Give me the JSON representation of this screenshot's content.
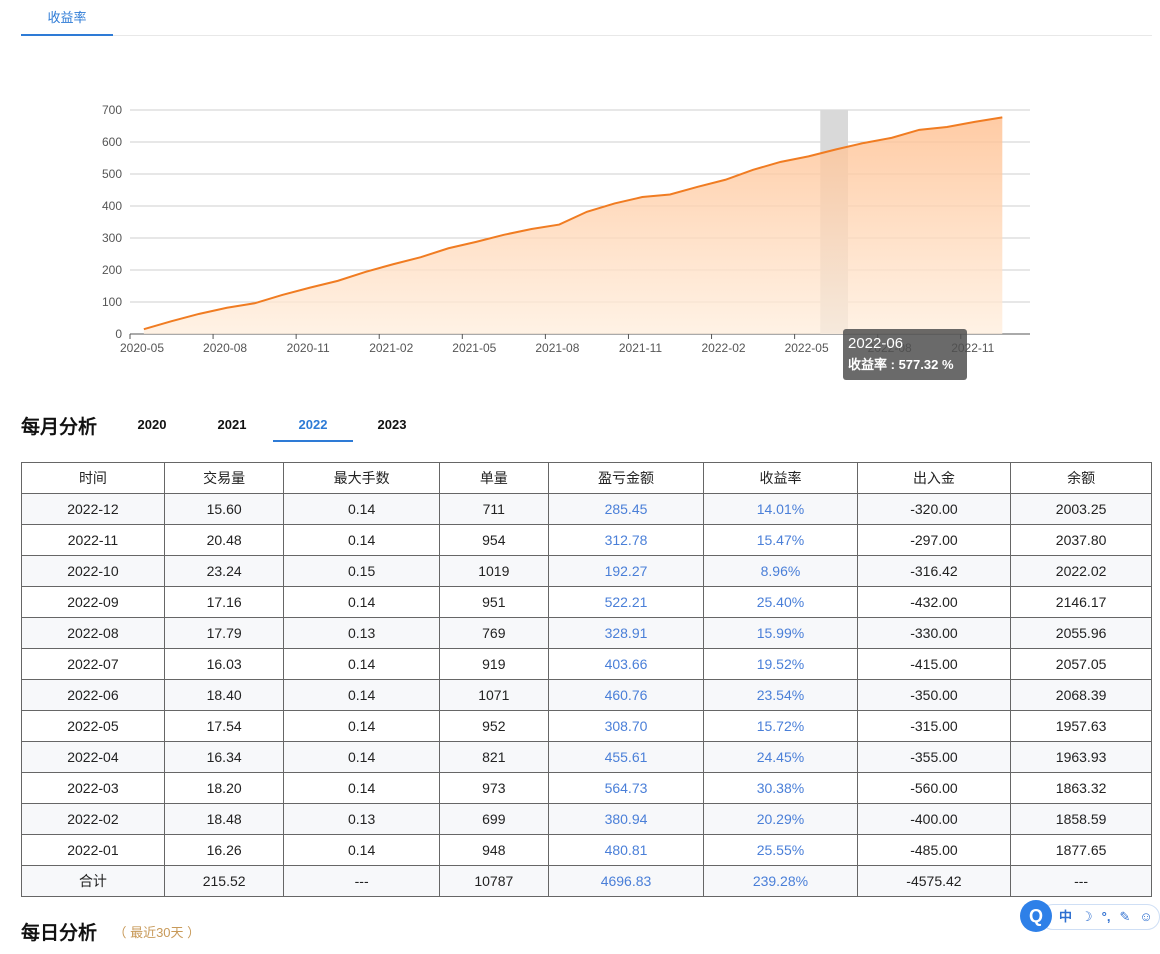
{
  "top_tab": {
    "label": "收益率"
  },
  "chart_data": {
    "type": "area",
    "x": [
      "2020-05",
      "2020-06",
      "2020-07",
      "2020-08",
      "2020-09",
      "2020-10",
      "2020-11",
      "2020-12",
      "2021-01",
      "2021-02",
      "2021-03",
      "2021-04",
      "2021-05",
      "2021-06",
      "2021-07",
      "2021-08",
      "2021-09",
      "2021-10",
      "2021-11",
      "2021-12",
      "2022-01",
      "2022-02",
      "2022-03",
      "2022-04",
      "2022-05",
      "2022-06",
      "2022-07",
      "2022-08",
      "2022-09",
      "2022-10",
      "2022-11",
      "2022-12"
    ],
    "values": [
      15,
      40,
      63,
      82,
      96,
      122,
      145,
      166,
      194,
      218,
      240,
      268,
      288,
      310,
      328,
      342,
      382,
      408,
      428,
      436,
      460,
      482,
      513,
      538,
      555,
      577,
      597,
      613,
      638,
      647,
      663,
      677
    ],
    "x_tick_labels": [
      "2020-05",
      "2020-08",
      "2020-11",
      "2021-02",
      "2021-05",
      "2021-08",
      "2021-11",
      "2022-02",
      "2022-05",
      "2022-08",
      "2022-11"
    ],
    "y_ticks": [
      0,
      100,
      200,
      300,
      400,
      500,
      600,
      700
    ],
    "ylim": [
      0,
      700
    ],
    "grid": true,
    "line_color": "#f07c22",
    "fill_color_top": "#ffbf8f",
    "fill_color_bottom": "#ffeedd",
    "highlight_month": "2022-06"
  },
  "tooltip": {
    "date": "2022-06",
    "label": "收益率",
    "value": "577.32 %"
  },
  "monthly": {
    "title": "每月分析",
    "year_tabs": [
      "2020",
      "2021",
      "2022",
      "2023"
    ],
    "active_year": "2022",
    "columns": [
      "时间",
      "交易量",
      "最大手数",
      "单量",
      "盈亏金额",
      "收益率",
      "出入金",
      "余额"
    ],
    "rows": [
      [
        "2022-12",
        "15.60",
        "0.14",
        "711",
        "285.45",
        "14.01%",
        "-320.00",
        "2003.25"
      ],
      [
        "2022-11",
        "20.48",
        "0.14",
        "954",
        "312.78",
        "15.47%",
        "-297.00",
        "2037.80"
      ],
      [
        "2022-10",
        "23.24",
        "0.15",
        "1019",
        "192.27",
        "8.96%",
        "-316.42",
        "2022.02"
      ],
      [
        "2022-09",
        "17.16",
        "0.14",
        "951",
        "522.21",
        "25.40%",
        "-432.00",
        "2146.17"
      ],
      [
        "2022-08",
        "17.79",
        "0.13",
        "769",
        "328.91",
        "15.99%",
        "-330.00",
        "2055.96"
      ],
      [
        "2022-07",
        "16.03",
        "0.14",
        "919",
        "403.66",
        "19.52%",
        "-415.00",
        "2057.05"
      ],
      [
        "2022-06",
        "18.40",
        "0.14",
        "1071",
        "460.76",
        "23.54%",
        "-350.00",
        "2068.39"
      ],
      [
        "2022-05",
        "17.54",
        "0.14",
        "952",
        "308.70",
        "15.72%",
        "-315.00",
        "1957.63"
      ],
      [
        "2022-04",
        "16.34",
        "0.14",
        "821",
        "455.61",
        "24.45%",
        "-355.00",
        "1963.93"
      ],
      [
        "2022-03",
        "18.20",
        "0.14",
        "973",
        "564.73",
        "30.38%",
        "-560.00",
        "1863.32"
      ],
      [
        "2022-02",
        "18.48",
        "0.13",
        "699",
        "380.94",
        "20.29%",
        "-400.00",
        "1858.59"
      ],
      [
        "2022-01",
        "16.26",
        "0.14",
        "948",
        "480.81",
        "25.55%",
        "-485.00",
        "1877.65"
      ]
    ],
    "total": [
      "合计",
      "215.52",
      "---",
      "10787",
      "4696.83",
      "239.28%",
      "-4575.42",
      "---"
    ]
  },
  "daily": {
    "title": "每日分析",
    "subtitle": "（ 最近30天 ）"
  },
  "ime": {
    "logo": "Q",
    "items": [
      "中",
      "☽",
      "°,",
      "✎",
      "☺"
    ]
  }
}
